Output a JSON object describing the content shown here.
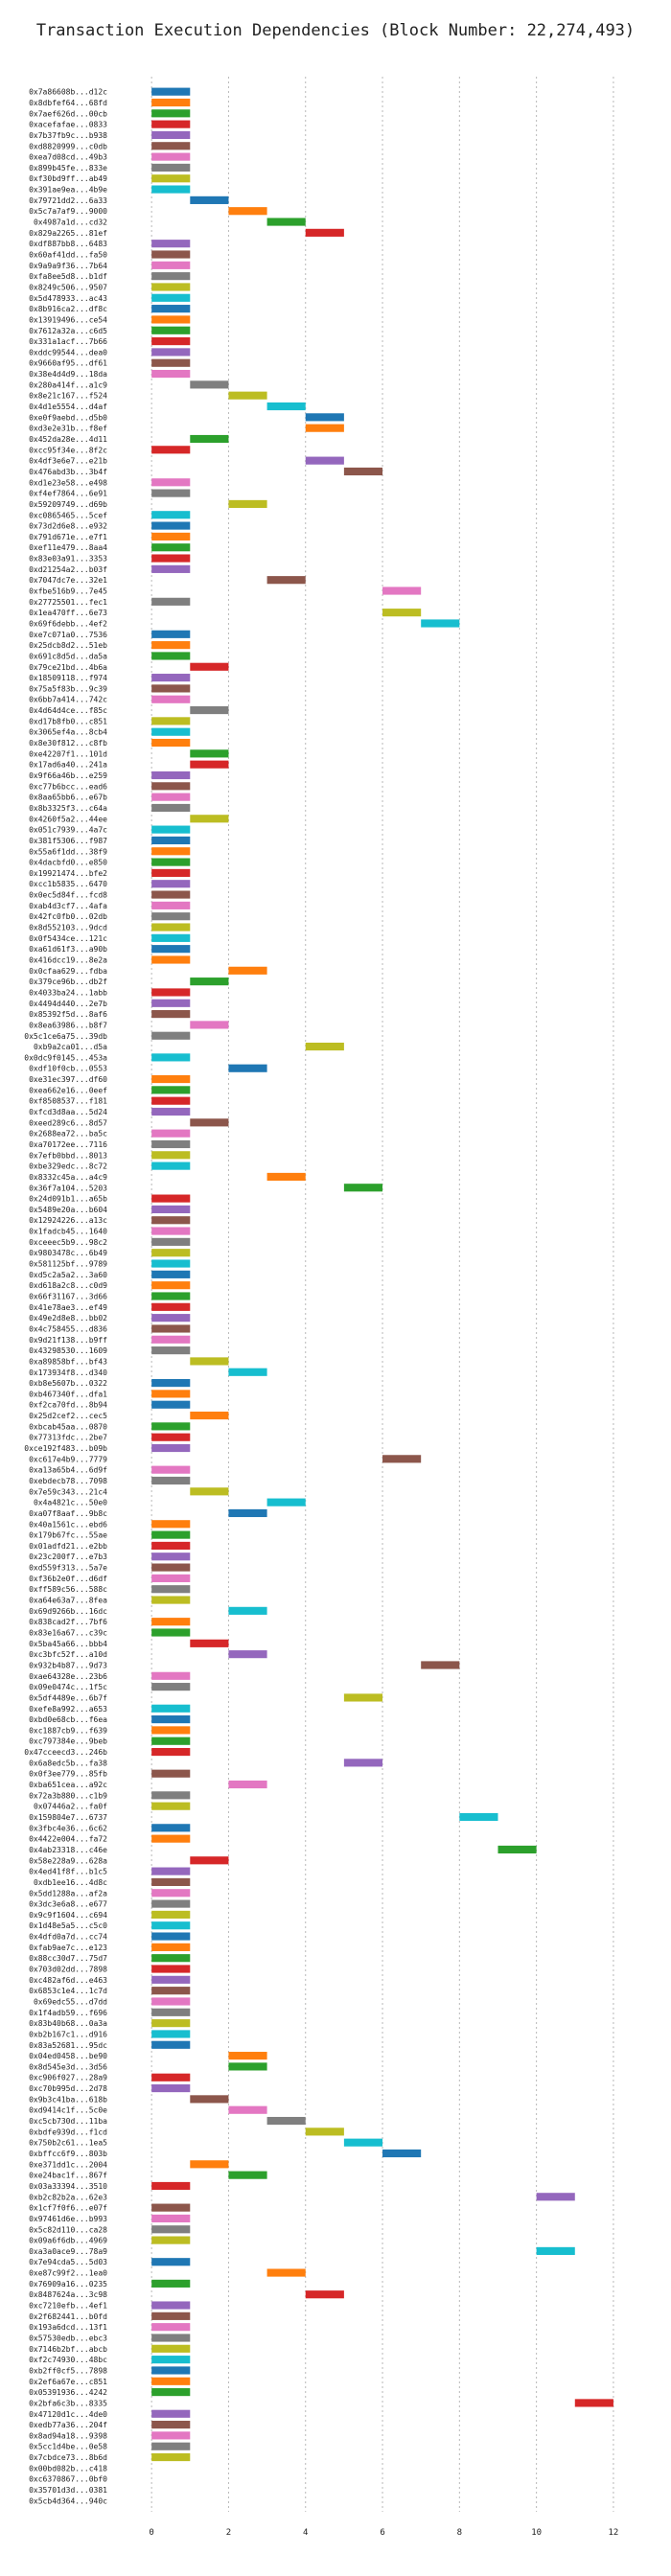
{
  "chart_data": {
    "type": "bar",
    "orientation": "horizontal-gantt",
    "title": "Transaction Execution Dependencies (Block Number: 22,274,493)",
    "xlabel": "",
    "ylabel": "",
    "xlim": [
      -1,
      12.5
    ],
    "xticks": [
      0,
      2,
      4,
      6,
      8,
      10,
      12
    ],
    "grid": "x-dotted",
    "legend": "none",
    "bar_duration": 1,
    "palette": [
      "#1f77b4",
      "#ff7f0e",
      "#2ca02c",
      "#d62728",
      "#9467bd",
      "#8c564b",
      "#e377c2",
      "#7f7f7f",
      "#bcbd22",
      "#17becf"
    ],
    "transactions": [
      "0x7a86608b...d12c",
      "0x8dbfef64...68fd",
      "0x7aef626d...00cb",
      "0xacefafae...0833",
      "0x7b37fb9c...b938",
      "0xd8820999...c0db",
      "0xea7d08cd...49b3",
      "0x899b45fe...833e",
      "0xf30bd9ff...ab49",
      "0x391ae9ea...4b9e",
      "0x79721dd2...6a33",
      "0x5c7a7af9...9000",
      "0x4987a1d...cd32",
      "0x829a2265...81ef",
      "0xdf887bb8...6483",
      "0x60af41dd...fa50",
      "0x9a9a9f36...7b64",
      "0xfa8ee5d8...b1df",
      "0x8249c506...9507",
      "0x5d478933...ac43",
      "0x8b916ca2...df8c",
      "0x13919496...ce54",
      "0x7612a32a...c6d5",
      "0x331a1acf...7b66",
      "0xddc99544...dea0",
      "0x9660af95...df61",
      "0x38e4d4d9...18da",
      "0x280a414f...a1c9",
      "0x8e21c167...f524",
      "0x4d1e5554...d4af",
      "0xe0f9aebd...d5b0",
      "0xd3e2e31b...f8ef",
      "0x452da28e...4d11",
      "0xcc95f34e...8f2c",
      "0x4df3e6e7...e21b",
      "0x476abd3b...3b4f",
      "0xd1e23e58...e498",
      "0xf4ef7864...6e91",
      "0x59209749...d69b",
      "0xc0865465...5cef",
      "0x73d2d6e8...e932",
      "0x791d671e...e7f1",
      "0xef11e479...8aa4",
      "0x83e03a91...3353",
      "0xd21254a2...b03f",
      "0x7047dc7e...32e1",
      "0xfbe516b9...7e45",
      "0x27725501...fec1",
      "0x1ea470ff...6e73",
      "0x69f6debb...4ef2",
      "0xe7c071a0...7536",
      "0x25dcb8d2...51eb",
      "0x691c8d5d...da5a",
      "0x79ce21bd...4b6a",
      "0x18509118...f974",
      "0x75a5f83b...9c39",
      "0x6bb7a414...742c",
      "0x4d64d4ce...f85c",
      "0xd17b8fb0...c851",
      "0x3065ef4a...8cb4",
      "0x8e30f812...c8fb",
      "0xe42207f1...101d",
      "0x17ad6a40...241a",
      "0x9f66a46b...e259",
      "0xc77b6bcc...ead6",
      "0x8aa65bb6...e67b",
      "0x8b3325f3...c64a",
      "0x4260f5a2...44ee",
      "0x051c7939...4a7c",
      "0x381f5306...f987",
      "0x55a6f1dd...38f9",
      "0x4dacbfd0...e850",
      "0x19921474...bfe2",
      "0xcc1b5835...6470",
      "0x0ec5d84f...fcd8",
      "0xab4d3cf7...4afa",
      "0x42fc0fb0...02db",
      "0x8d552103...9dcd",
      "0x0f5434ce...121c",
      "0xa61d61f3...a90b",
      "0x416dcc19...8e2a",
      "0x0cfaa629...fdba",
      "0x379ce96b...db2f",
      "0x4033ba24...1abb",
      "0x4494d440...2e7b",
      "0x85392f5d...8af6",
      "0x8ea63986...b8f7",
      "0x5c1ce6a75...39db",
      "0xb9a2ca01...d5a",
      "0x0dc9f0145...453a",
      "0xdf10f0cb...0553",
      "0xe31ec397...df60",
      "0xea662e16...0eef",
      "0xf8508537...f181",
      "0xfcd3d8aa...5d24",
      "0xeed289c6...8d57",
      "0x2688ea72...ba5c",
      "0xa70172ee...7116",
      "0x7efb0bbd...8013",
      "0xbe329edc...8c72",
      "0x8332c45a...a4c9",
      "0x36f7a104...5203",
      "0x24d091b1...a65b",
      "0x5489e20a...b604",
      "0x12924226...a13c",
      "0x1fadcb45...1640",
      "0xceeec5b9...98c2",
      "0x9803478c...6b49",
      "0x581125bf...9789",
      "0xd5c2a5a2...3a60",
      "0xd618a2c8...c0d9",
      "0x66f31167...3d66",
      "0x41e78ae3...ef49",
      "0x49e2d8e8...bb02",
      "0x4c758455...d836",
      "0x9d21f138...b9ff",
      "0x43298530...1609",
      "0xa89858bf...bf43",
      "0x173934f8...d340",
      "0xb8e5607b...0322",
      "0xb467340f...dfa1",
      "0xf2ca70fd...8b94",
      "0x25d2cef2...cec5",
      "0xbcab45aa...0870",
      "0x77313fdc...2be7",
      "0xce192f483...b09b",
      "0xc617e4b9...7779",
      "0xa13a65b4...6d9f",
      "0xebdecb78...7098",
      "0x7e59c343...21c4",
      "0x4a4821c...50e0",
      "0xa07f8aaf...9b8c",
      "0x40a1561c...ebd6",
      "0x179b67fc...55ae",
      "0x01adfd21...e2bb",
      "0x23c200f7...e7b3",
      "0xd559f313...5a7e",
      "0xf36b2e0f...d6df",
      "0xff589c56...588c",
      "0xa64e63a7...8fea",
      "0x69d9266b...16dc",
      "0x838cad2f...7bf6",
      "0x83e16a67...c39c",
      "0x5ba45a66...bbb4",
      "0xc3bfc52f...a10d",
      "0x932b4b87...9d73",
      "0xae64328e...23b6",
      "0x09e0474c...1f5c",
      "0x5df4489e...6b7f",
      "0xefe8a992...a653",
      "0xbd0e68cb...f6ea",
      "0xc1887cb9...f639",
      "0xc797384e...9beb",
      "0x47cceecd3...246b",
      "0x6a8edc5b...fa38",
      "0x0f3ee779...85fb",
      "0xba651cea...a92c",
      "0x72a3b880...c1b9",
      "0x07446a2...fa0f",
      "0x159804e7...6737",
      "0x3fbc4e36...6c62",
      "0x4422e004...fa72",
      "0x4ab23318...c46e",
      "0x58e228a9...628a",
      "0x4ed41f8f...b1c5",
      "0xdb1ee16...4d8c",
      "0x5dd1288a...af2a",
      "0x3dc3e6a8...e677",
      "0x9c9f1604...c694",
      "0x1d48e5a5...c5c0",
      "0x4dfd0a7d...cc74",
      "0xfab9ae7c...e123",
      "0x88cc30d7...75d7",
      "0x703d02dd...7898",
      "0xc482af6d...e463",
      "0x6853c1e4...1c7d",
      "0x69edc55...d7dd",
      "0x1f4adb59...f696",
      "0x83b40b68...0a3a",
      "0xb2b167c1...d916",
      "0x83a52681...95dc",
      "0x04ed0458...be90",
      "0x8d545e3d...3d56",
      "0xc906f027...28a9",
      "0xc70b995d...2d78",
      "0x9b3c41ba...618b",
      "0xd9414c1f...5c0e",
      "0xc5cb730d...11ba",
      "0xbdfe939d...f1cd",
      "0x750b2c61...1ea5",
      "0xbffcc6f9...803b",
      "0xe371dd1c...2004",
      "0xe24bac1f...867f",
      "0x03a33394...3510",
      "0xb2c82b2a...62e3",
      "0x1cf7f0f6...e07f",
      "0x97461d6e...b993",
      "0x5c82d110...ca28",
      "0x09a6f6db...4969",
      "0xa3a0ace9...78a9",
      "0x7e94cda5...5d03",
      "0xe87c99f2...1ea0",
      "0x76909a16...0235",
      "0x8487624a...3c98",
      "0xc7210efb...4ef1",
      "0x2f682441...b0fd",
      "0x193a6dcd...13f1",
      "0x57530edb...ebc3",
      "0x7146b2bf...abcb",
      "0xf2c74930...48bc",
      "0xb2ff0cf5...7898",
      "0x2ef6a67e...c851",
      "0x05391936...4242",
      "0x2bfa6c3b...8335",
      "0x47120d1c...4de0",
      "0xedb77a36...204f",
      "0x8ad94a18...9398",
      "0x5cc1d4be...0e58",
      "0x7cbdce73...8b6d",
      "0x00bd082b...c418",
      "0xc6370867...0bf0",
      "0x35701d3d...0381",
      "0x5cb4d364...940c"
    ],
    "start": [
      0,
      0,
      0,
      0,
      0,
      0,
      0,
      0,
      0,
      0,
      1,
      2,
      3,
      4,
      0,
      0,
      0,
      0,
      0,
      0,
      0,
      0,
      0,
      0,
      0,
      0,
      0,
      1,
      2,
      3,
      4,
      4,
      1,
      0,
      4,
      5,
      0,
      0,
      2,
      0,
      0,
      0,
      0,
      0,
      0,
      3,
      6,
      0,
      6,
      7,
      0,
      0,
      0,
      1,
      0,
      0,
      0,
      1,
      0,
      0,
      0,
      1,
      1,
      0,
      0,
      0,
      0,
      1,
      0,
      0,
      0,
      0,
      0,
      0,
      0,
      0,
      0,
      0,
      0,
      0,
      0,
      2,
      1,
      0,
      0,
      0,
      1,
      0,
      4,
      0,
      2,
      0,
      0,
      0,
      0,
      1,
      0,
      0,
      0,
      0,
      3,
      5,
      0,
      0,
      0,
      0,
      0,
      0,
      0,
      0,
      0,
      0,
      0,
      0,
      0,
      0,
      0,
      1,
      2,
      0,
      0,
      0,
      1,
      0,
      0,
      0,
      6,
      0,
      0,
      1,
      3,
      2,
      0,
      0,
      0,
      0,
      0,
      0,
      0,
      0,
      2,
      0,
      0,
      1,
      2,
      7,
      0,
      0,
      5,
      0,
      0,
      0,
      0,
      0,
      5,
      0,
      2,
      0,
      0,
      8,
      0,
      0,
      9,
      1,
      0,
      0,
      0,
      0,
      0,
      0,
      0,
      0,
      0,
      0,
      0,
      0,
      0,
      0,
      0,
      0,
      0,
      2,
      2,
      0,
      0,
      1,
      2,
      3,
      4,
      5,
      6,
      1,
      2,
      0,
      10,
      0,
      0,
      0,
      0,
      10,
      0,
      3,
      0,
      4,
      0,
      0,
      0,
      0,
      0,
      0,
      0,
      0,
      0,
      11,
      0,
      0,
      0,
      0,
      0
    ],
    "colors": [
      0,
      1,
      2,
      3,
      4,
      5,
      6,
      7,
      8,
      9,
      0,
      1,
      2,
      3,
      4,
      5,
      6,
      7,
      8,
      9,
      0,
      1,
      2,
      3,
      4,
      5,
      6,
      7,
      8,
      9,
      0,
      1,
      2,
      3,
      4,
      5,
      6,
      7,
      8,
      9,
      0,
      1,
      2,
      3,
      4,
      5,
      6,
      7,
      8,
      9,
      0,
      1,
      2,
      3,
      4,
      5,
      6,
      7,
      8,
      9,
      1,
      2,
      3,
      4,
      5,
      6,
      7,
      8,
      9,
      0,
      1,
      2,
      3,
      4,
      5,
      6,
      7,
      8,
      9,
      0,
      1,
      1,
      2,
      3,
      4,
      5,
      6,
      7,
      8,
      9,
      0,
      1,
      2,
      3,
      4,
      5,
      6,
      7,
      8,
      9,
      1,
      2,
      3,
      4,
      5,
      6,
      7,
      8,
      9,
      0,
      1,
      2,
      3,
      4,
      5,
      6,
      7,
      8,
      9,
      0,
      1,
      0,
      1,
      2,
      3,
      4,
      5,
      6,
      7,
      8,
      9,
      0,
      1,
      2,
      3,
      4,
      5,
      6,
      7,
      8,
      9,
      1,
      2,
      3,
      4,
      5,
      6,
      7,
      8,
      9,
      0,
      1,
      2,
      3,
      4,
      5,
      6,
      7,
      8,
      9,
      0,
      1,
      2,
      3,
      4,
      5,
      6,
      7,
      8,
      9,
      0,
      1,
      2,
      3,
      4,
      5,
      6,
      7,
      8,
      9,
      0,
      1,
      2,
      3,
      4,
      5,
      6,
      7,
      8,
      9,
      0,
      1,
      2,
      3,
      4,
      5,
      6,
      7,
      8,
      9,
      0,
      1,
      2,
      3,
      4,
      5,
      6,
      7,
      8,
      9,
      0,
      1,
      2,
      3,
      4,
      5,
      6,
      7,
      8,
      9,
      0,
      1,
      2,
      3,
      4,
      5,
      6,
      7,
      8,
      9,
      0,
      1,
      2,
      3,
      4,
      5,
      6,
      7,
      8,
      9,
      0,
      1,
      2,
      3,
      4,
      5
    ]
  }
}
